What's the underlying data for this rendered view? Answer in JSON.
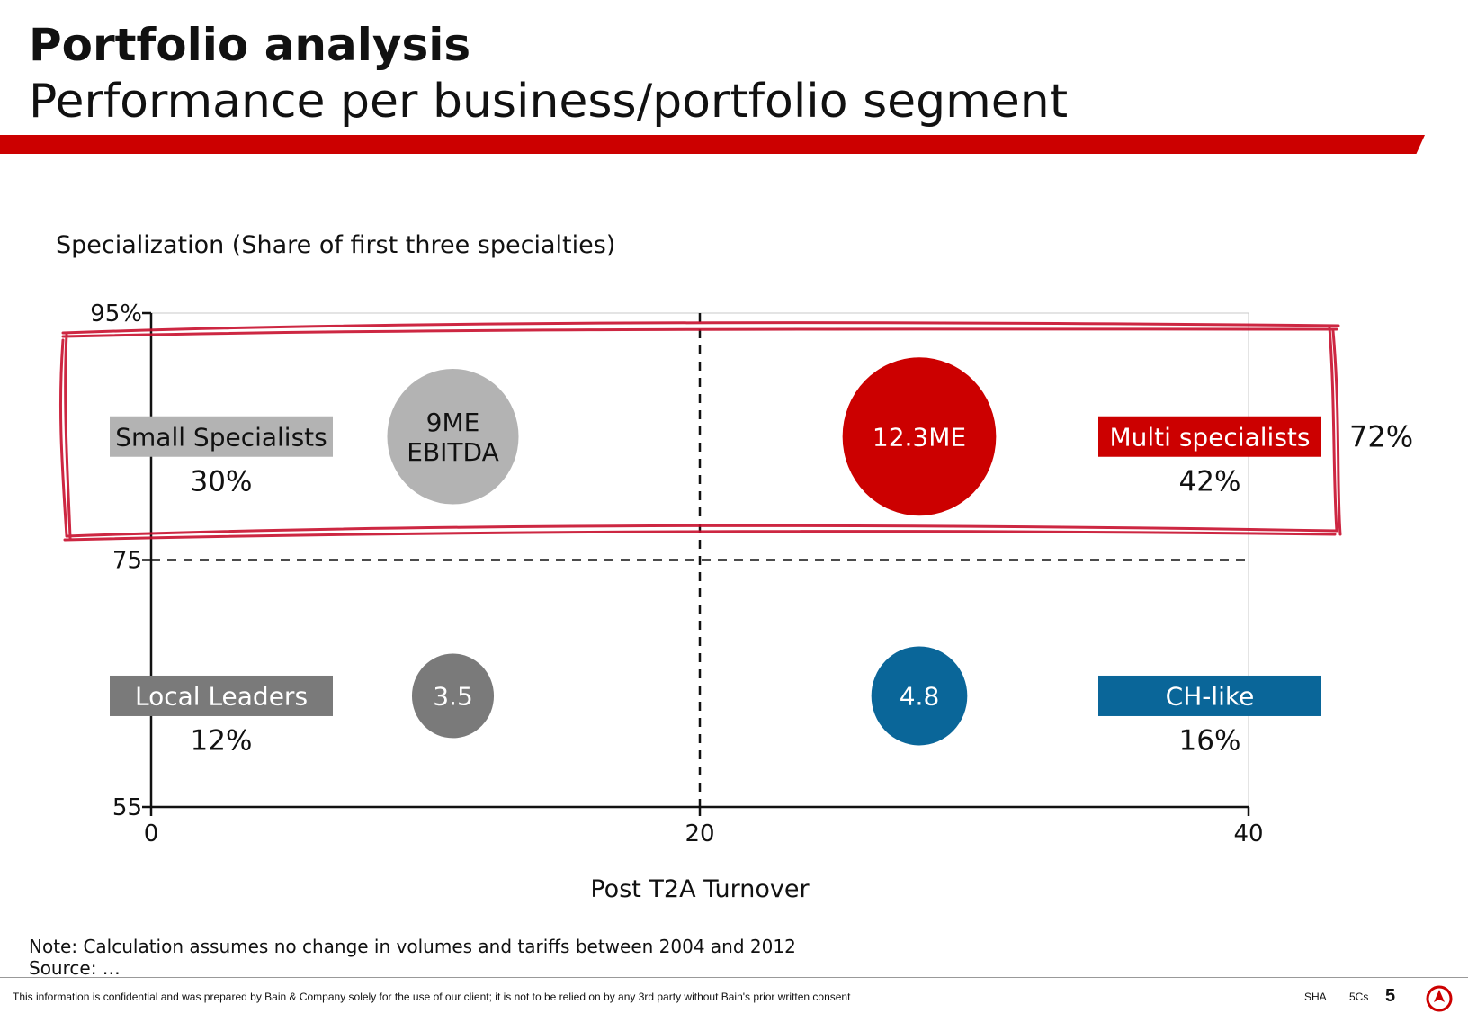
{
  "header": {
    "title": "Portfolio analysis",
    "subtitle": "Performance per business/portfolio segment"
  },
  "colors": {
    "brand_red": "#cc0000",
    "grey_light": "#b3b3b3",
    "grey_dark": "#7a7a7a",
    "blue": "#0a6699"
  },
  "chart_data": {
    "type": "scatter",
    "title": "",
    "ylabel": "Specialization (Share of first three specialties)",
    "xlabel": "Post T2A Turnover",
    "xlim": [
      0,
      40
    ],
    "ylim": [
      55,
      95
    ],
    "x_ticks": [
      "0",
      "20",
      "40"
    ],
    "y_ticks": [
      "55",
      "75",
      "95%"
    ],
    "divider_x": 20,
    "divider_y": 75,
    "grid": false,
    "bubbles": [
      {
        "label": "9ME\nEBITDA",
        "value": 9,
        "x": 11,
        "y": 85,
        "color": "#b3b3b3",
        "text_color": "#111111"
      },
      {
        "label": "12.3ME",
        "value": 12.3,
        "x": 28,
        "y": 85,
        "color": "#cc0000",
        "text_color": "#ffffff"
      },
      {
        "label": "3.5",
        "value": 3.5,
        "x": 11,
        "y": 64,
        "color": "#7a7a7a",
        "text_color": "#ffffff"
      },
      {
        "label": "4.8",
        "value": 4.8,
        "x": 28,
        "y": 64,
        "color": "#0a6699",
        "text_color": "#ffffff"
      }
    ],
    "segments": [
      {
        "name": "Small Specialists",
        "share": "30%",
        "side": "left",
        "row": "top",
        "bg": "#b3b3b3",
        "fg": "#111111"
      },
      {
        "name": "Multi specialists",
        "share": "42%",
        "side": "right",
        "row": "top",
        "bg": "#cc0000",
        "fg": "#ffffff"
      },
      {
        "name": "Local Leaders",
        "share": "12%",
        "side": "left",
        "row": "bottom",
        "bg": "#7a7a7a",
        "fg": "#ffffff"
      },
      {
        "name": "CH-like",
        "share": "16%",
        "side": "right",
        "row": "bottom",
        "bg": "#0a6699",
        "fg": "#ffffff"
      }
    ],
    "highlight_total": "72%"
  },
  "footnote": {
    "note": "Note: Calculation assumes no change in volumes and tariffs between 2004 and 2012",
    "source": "Source: …"
  },
  "footer": {
    "disclaimer": "This information is confidential and was prepared by Bain & Company solely for the use of our client; it is not to be relied on by any 3rd party without Bain's prior written consent",
    "code1": "SHA",
    "code2": "5Cs",
    "page": "5"
  }
}
